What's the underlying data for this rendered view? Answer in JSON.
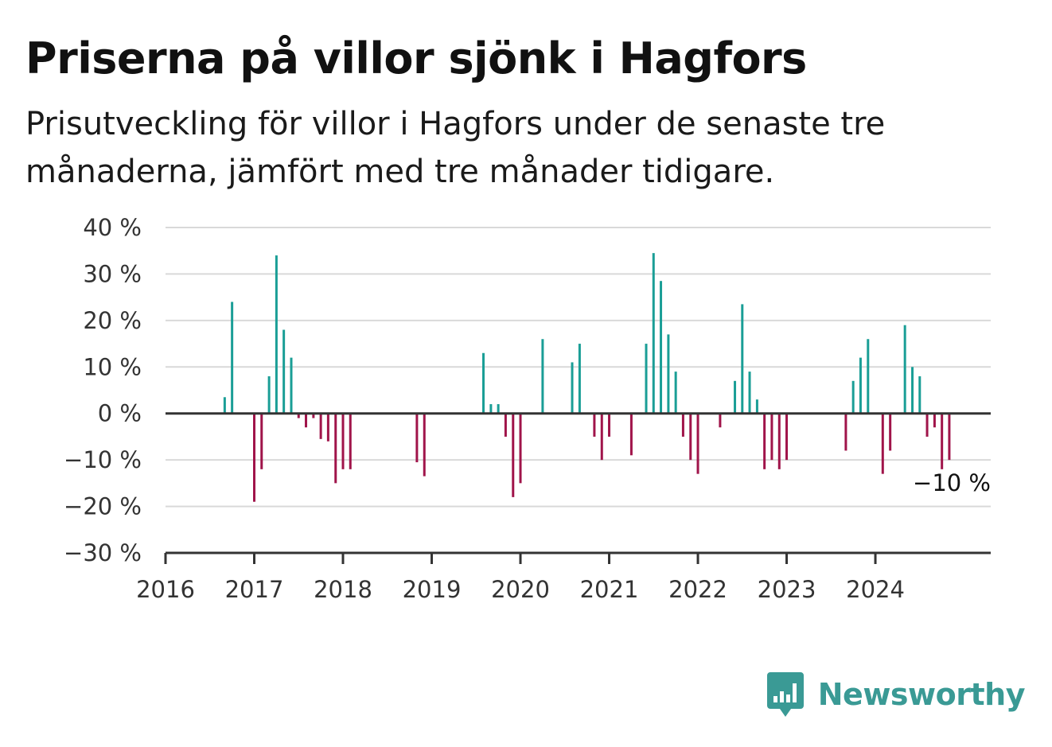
{
  "title": "Priserna på villor sjönk i Hagfors",
  "subtitle": "Prisutveckling för villor i Hagfors under de senaste tre månaderna, jämfört med tre månader tidigare.",
  "brand": {
    "name": "Newsworthy",
    "icon": "newsworthy-logo-icon"
  },
  "colors": {
    "positive": "#1a9e96",
    "negative": "#a0144a",
    "grid": "#d9d9d9",
    "axis": "#333333"
  },
  "chart_data": {
    "type": "bar",
    "y_ticks": [
      "40 %",
      "30 %",
      "20 %",
      "10 %",
      "0 %",
      "−10 %",
      "−20 %",
      "−30 %"
    ],
    "y_tick_values": [
      40,
      30,
      20,
      10,
      0,
      -10,
      -20,
      -30
    ],
    "ylim": [
      -30,
      40
    ],
    "x_ticks": [
      "2016",
      "2017",
      "2018",
      "2019",
      "2020",
      "2021",
      "2022",
      "2023",
      "2024"
    ],
    "x_tick_values": [
      2016,
      2017,
      2018,
      2019,
      2020,
      2021,
      2022,
      2023,
      2024
    ],
    "xlim": [
      2016,
      2025.3
    ],
    "grid": true,
    "last_value_label": "−10 %",
    "x": [
      2016.667,
      2016.75,
      2017.0,
      2017.083,
      2017.167,
      2017.25,
      2017.333,
      2017.417,
      2017.5,
      2017.583,
      2017.667,
      2017.75,
      2017.833,
      2017.917,
      2018.0,
      2018.083,
      2018.833,
      2018.917,
      2019.583,
      2019.667,
      2019.75,
      2019.833,
      2019.917,
      2020.0,
      2020.25,
      2020.583,
      2020.667,
      2020.833,
      2020.917,
      2021.0,
      2021.25,
      2021.417,
      2021.5,
      2021.583,
      2021.667,
      2021.75,
      2021.833,
      2021.917,
      2022.0,
      2022.25,
      2022.417,
      2022.5,
      2022.583,
      2022.667,
      2022.75,
      2022.833,
      2022.917,
      2023.0,
      2023.667,
      2023.75,
      2023.833,
      2023.917,
      2024.083,
      2024.167,
      2024.333,
      2024.417,
      2024.5,
      2024.583,
      2024.667,
      2024.75,
      2024.833
    ],
    "values": [
      3.5,
      24,
      -19,
      -12,
      8,
      34,
      18,
      12,
      -1,
      -3,
      -1,
      -5.5,
      -6,
      -15,
      -12,
      -12,
      -10.5,
      -13.5,
      13,
      2,
      2,
      -5,
      -18,
      -15,
      16,
      11,
      15,
      -5,
      -10,
      -5,
      -9,
      15,
      34.5,
      28.5,
      17,
      9,
      -5,
      -10,
      -13,
      -3,
      7,
      23.5,
      9,
      3,
      -12,
      -10,
      -12,
      -10,
      -8,
      7,
      12,
      16,
      -13,
      -8,
      19,
      10,
      8,
      -5,
      -3,
      -12,
      -10
    ]
  }
}
